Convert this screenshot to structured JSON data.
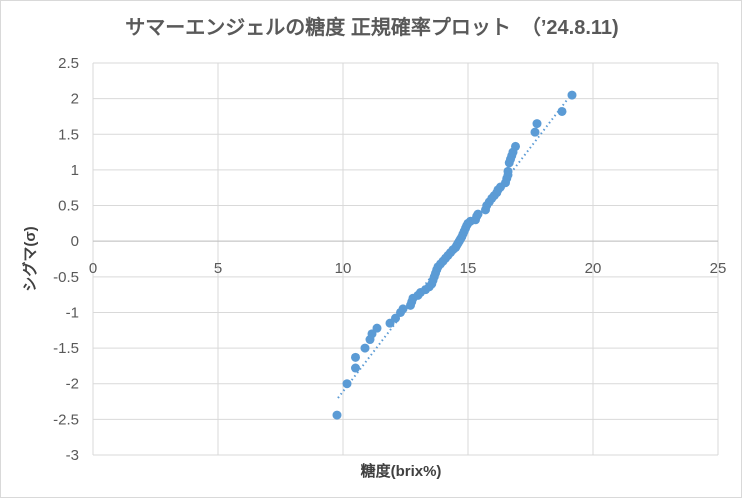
{
  "chart_data": {
    "type": "scatter",
    "title": "サマーエンジェルの糖度  正規確率プロット　（’24.8.11)",
    "xlabel": "糖度(brix%)",
    "ylabel": "シグマ(σ)",
    "xlim": [
      0,
      25
    ],
    "ylim": [
      -3,
      2.5
    ],
    "xticks": [
      0,
      5,
      10,
      15,
      20,
      25
    ],
    "yticks": [
      -3,
      -2.5,
      -2,
      -1.5,
      -1,
      -0.5,
      0,
      0.5,
      1,
      1.5,
      2,
      2.5
    ],
    "ytick_labels": [
      "-3",
      "-2.5",
      "-2",
      "-1.5",
      "-1",
      "-0.5",
      "0",
      "0.5",
      "1",
      "1.5",
      "2",
      "2.5"
    ],
    "grid": true,
    "color": "#5b9bd5",
    "trendline": {
      "style": "dotted",
      "x": [
        9.8,
        19.0
      ],
      "y": [
        -2.2,
        2.0
      ]
    },
    "points": [
      [
        9.76,
        -2.44
      ],
      [
        10.16,
        -2.0
      ],
      [
        10.5,
        -1.78
      ],
      [
        10.5,
        -1.63
      ],
      [
        10.88,
        -1.5
      ],
      [
        11.08,
        -1.38
      ],
      [
        11.16,
        -1.3
      ],
      [
        11.36,
        -1.22
      ],
      [
        11.88,
        -1.15
      ],
      [
        12.1,
        -1.08
      ],
      [
        12.3,
        -1.0
      ],
      [
        12.4,
        -0.95
      ],
      [
        12.7,
        -0.9
      ],
      [
        12.75,
        -0.85
      ],
      [
        12.8,
        -0.8
      ],
      [
        13.0,
        -0.76
      ],
      [
        13.1,
        -0.72
      ],
      [
        13.3,
        -0.68
      ],
      [
        13.45,
        -0.64
      ],
      [
        13.55,
        -0.6
      ],
      [
        13.6,
        -0.55
      ],
      [
        13.65,
        -0.5
      ],
      [
        13.7,
        -0.45
      ],
      [
        13.75,
        -0.4
      ],
      [
        13.8,
        -0.36
      ],
      [
        13.9,
        -0.32
      ],
      [
        14.0,
        -0.28
      ],
      [
        14.1,
        -0.24
      ],
      [
        14.2,
        -0.2
      ],
      [
        14.3,
        -0.16
      ],
      [
        14.4,
        -0.12
      ],
      [
        14.5,
        -0.09
      ],
      [
        14.55,
        -0.06
      ],
      [
        14.6,
        -0.03
      ],
      [
        14.65,
        0.0
      ],
      [
        14.7,
        0.03
      ],
      [
        14.75,
        0.06
      ],
      [
        14.8,
        0.1
      ],
      [
        14.85,
        0.14
      ],
      [
        14.9,
        0.18
      ],
      [
        14.95,
        0.22
      ],
      [
        15.0,
        0.25
      ],
      [
        15.1,
        0.28
      ],
      [
        15.3,
        0.3
      ],
      [
        15.35,
        0.35
      ],
      [
        15.4,
        0.38
      ],
      [
        15.7,
        0.44
      ],
      [
        15.75,
        0.5
      ],
      [
        15.85,
        0.55
      ],
      [
        15.95,
        0.6
      ],
      [
        16.05,
        0.64
      ],
      [
        16.15,
        0.68
      ],
      [
        16.2,
        0.72
      ],
      [
        16.3,
        0.76
      ],
      [
        16.5,
        0.82
      ],
      [
        16.55,
        0.88
      ],
      [
        16.6,
        0.93
      ],
      [
        16.6,
        0.98
      ],
      [
        16.65,
        1.1
      ],
      [
        16.7,
        1.15
      ],
      [
        16.75,
        1.2
      ],
      [
        16.8,
        1.25
      ],
      [
        16.9,
        1.33
      ],
      [
        17.68,
        1.53
      ],
      [
        17.76,
        1.65
      ],
      [
        18.76,
        1.82
      ],
      [
        19.16,
        2.05
      ]
    ]
  }
}
